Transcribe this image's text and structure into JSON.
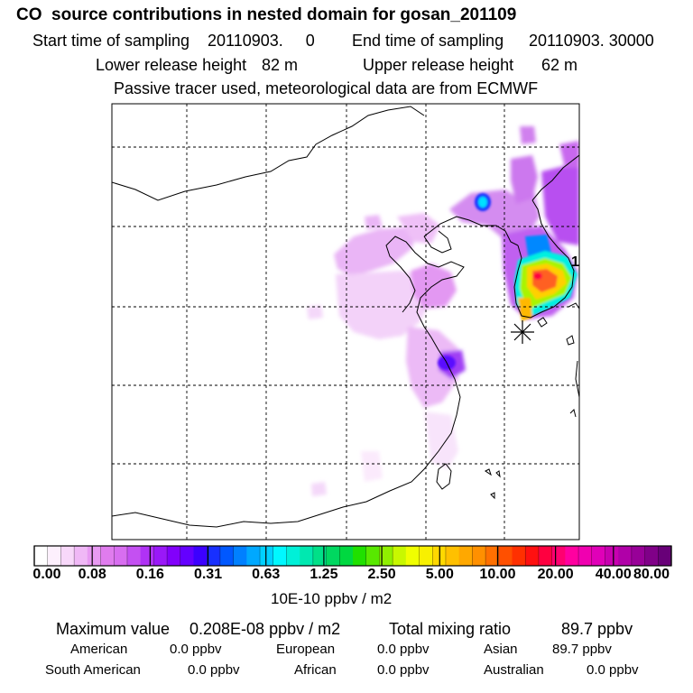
{
  "header": {
    "title": "CO  source contributions in nested domain for gosan_201109",
    "start_label": "Start time of sampling",
    "start_value": "20110903.     0",
    "end_label": "End time of sampling",
    "end_value": "20110903. 30000",
    "lower_label": "Lower release height",
    "lower_value": "82 m",
    "upper_label": "Upper release height",
    "upper_value": "62 m",
    "info": "Passive tracer used, meteorological data are from ECMWF"
  },
  "chart_data": {
    "type": "heatmap",
    "title": "CO  source contributions in nested domain for gosan_201109",
    "map_marker_label": "1",
    "colorbar": {
      "unit": "10E-10 ppbv / m2",
      "tick_labels": [
        "0.00",
        "0.08",
        "0.16",
        "0.31",
        "0.63",
        "1.25",
        "2.50",
        "5.00",
        "10.00",
        "20.00",
        "40.00",
        "80.00"
      ],
      "colors": [
        "#ffffff",
        "#fdf0fd",
        "#f8d8fa",
        "#f0b8f6",
        "#e89af2",
        "#e07cee",
        "#d86ef0",
        "#c450f2",
        "#b032f5",
        "#9a18f8",
        "#8200fb",
        "#6400ff",
        "#3c00ff",
        "#1830ff",
        "#0058ff",
        "#0080ff",
        "#00a8ff",
        "#00d0ff",
        "#00f8ff",
        "#00f0d8",
        "#00e8b0",
        "#00e088",
        "#00d860",
        "#00d840",
        "#20e000",
        "#58e800",
        "#90f000",
        "#c8f800",
        "#f0ff00",
        "#f8f000",
        "#ffd800",
        "#ffc000",
        "#ffa800",
        "#ff9000",
        "#ff7000",
        "#ff5000",
        "#ff3000",
        "#ff1010",
        "#ff0040",
        "#ff0070",
        "#ff00a0",
        "#f000b0",
        "#e000b8",
        "#c800b0",
        "#b000a8",
        "#980098",
        "#800088",
        "#680078"
      ]
    },
    "max_value": "0.208E-08 ppbv / m2",
    "total_mixing_ratio": "89.7 ppbv"
  },
  "stats": {
    "max_label": "Maximum value",
    "total_label": "Total mixing ratio",
    "regions": [
      {
        "name": "American",
        "value": "0.0 ppbv"
      },
      {
        "name": "European",
        "value": "0.0 ppbv"
      },
      {
        "name": "Asian",
        "value": "89.7 ppbv"
      },
      {
        "name": "South American",
        "value": "0.0 ppbv"
      },
      {
        "name": "African",
        "value": "0.0 ppbv"
      },
      {
        "name": "Australian",
        "value": "0.0 ppbv"
      }
    ]
  }
}
